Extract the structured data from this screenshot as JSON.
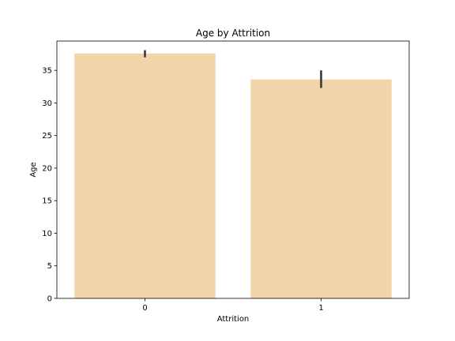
{
  "chart_data": {
    "type": "bar",
    "title": "Age by Attrition",
    "xlabel": "Attrition",
    "ylabel": "Age",
    "categories": [
      "0",
      "1"
    ],
    "values": [
      37.6,
      33.6
    ],
    "error_bars": [
      {
        "low": 37.0,
        "high": 38.1
      },
      {
        "low": 32.3,
        "high": 35.0
      }
    ],
    "ylim": [
      0,
      39.5
    ],
    "yticks": [
      0,
      5,
      10,
      15,
      20,
      25,
      30,
      35
    ],
    "bar_color": "#f2d4a9",
    "error_color": "#3f3f3f",
    "grid": false,
    "legend": "none"
  }
}
